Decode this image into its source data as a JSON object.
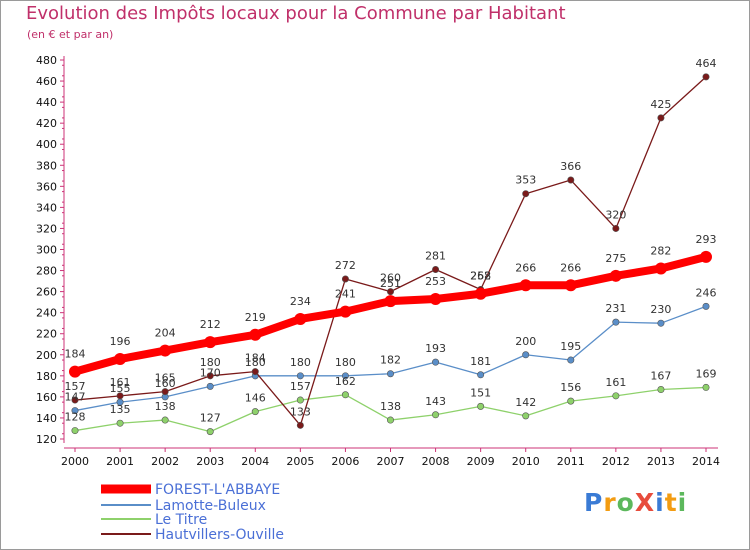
{
  "header": {
    "title": "Evolution des Impôts locaux pour la Commune par Habitant",
    "subtitle": "(en € et par an)"
  },
  "logo": {
    "text": "ProXiti",
    "colors": [
      "#3a7bd5",
      "#f39c12",
      "#5cb85c",
      "#e74c3c",
      "#3a7bd5",
      "#f39c12",
      "#5cb85c"
    ]
  },
  "chart_data": {
    "type": "line",
    "title": "Evolution des Impôts locaux pour la Commune par Habitant",
    "subtitle": "(en € et par an)",
    "x": [
      2000,
      2001,
      2002,
      2003,
      2004,
      2005,
      2006,
      2007,
      2008,
      2009,
      2010,
      2011,
      2012,
      2013,
      2014
    ],
    "ylim": [
      120,
      480
    ],
    "yticks": [
      120,
      140,
      160,
      180,
      200,
      220,
      240,
      260,
      280,
      300,
      320,
      340,
      360,
      380,
      400,
      420,
      440,
      460,
      480
    ],
    "grid": false,
    "legend_position": "bottom-left",
    "series": [
      {
        "name": "FOREST-L'ABBAYE",
        "color": "#ff0000",
        "values": [
          184,
          196,
          204,
          212,
          219,
          234,
          241,
          251,
          253,
          258,
          266,
          266,
          275,
          282,
          293
        ]
      },
      {
        "name": "Lamotte-Buleux",
        "color": "#5a8ec8",
        "values": [
          147,
          155,
          160,
          170,
          180,
          180,
          180,
          182,
          193,
          181,
          200,
          195,
          231,
          230,
          246
        ]
      },
      {
        "name": "Le Titre",
        "color": "#8ed16b",
        "values": [
          128,
          135,
          138,
          127,
          146,
          157,
          162,
          138,
          143,
          151,
          142,
          156,
          161,
          167,
          169
        ]
      },
      {
        "name": "Hautvillers-Ouville",
        "color": "#7a1a1a",
        "values": [
          157,
          161,
          165,
          180,
          184,
          133,
          272,
          260,
          281,
          262,
          353,
          366,
          320,
          425,
          464
        ]
      }
    ]
  }
}
